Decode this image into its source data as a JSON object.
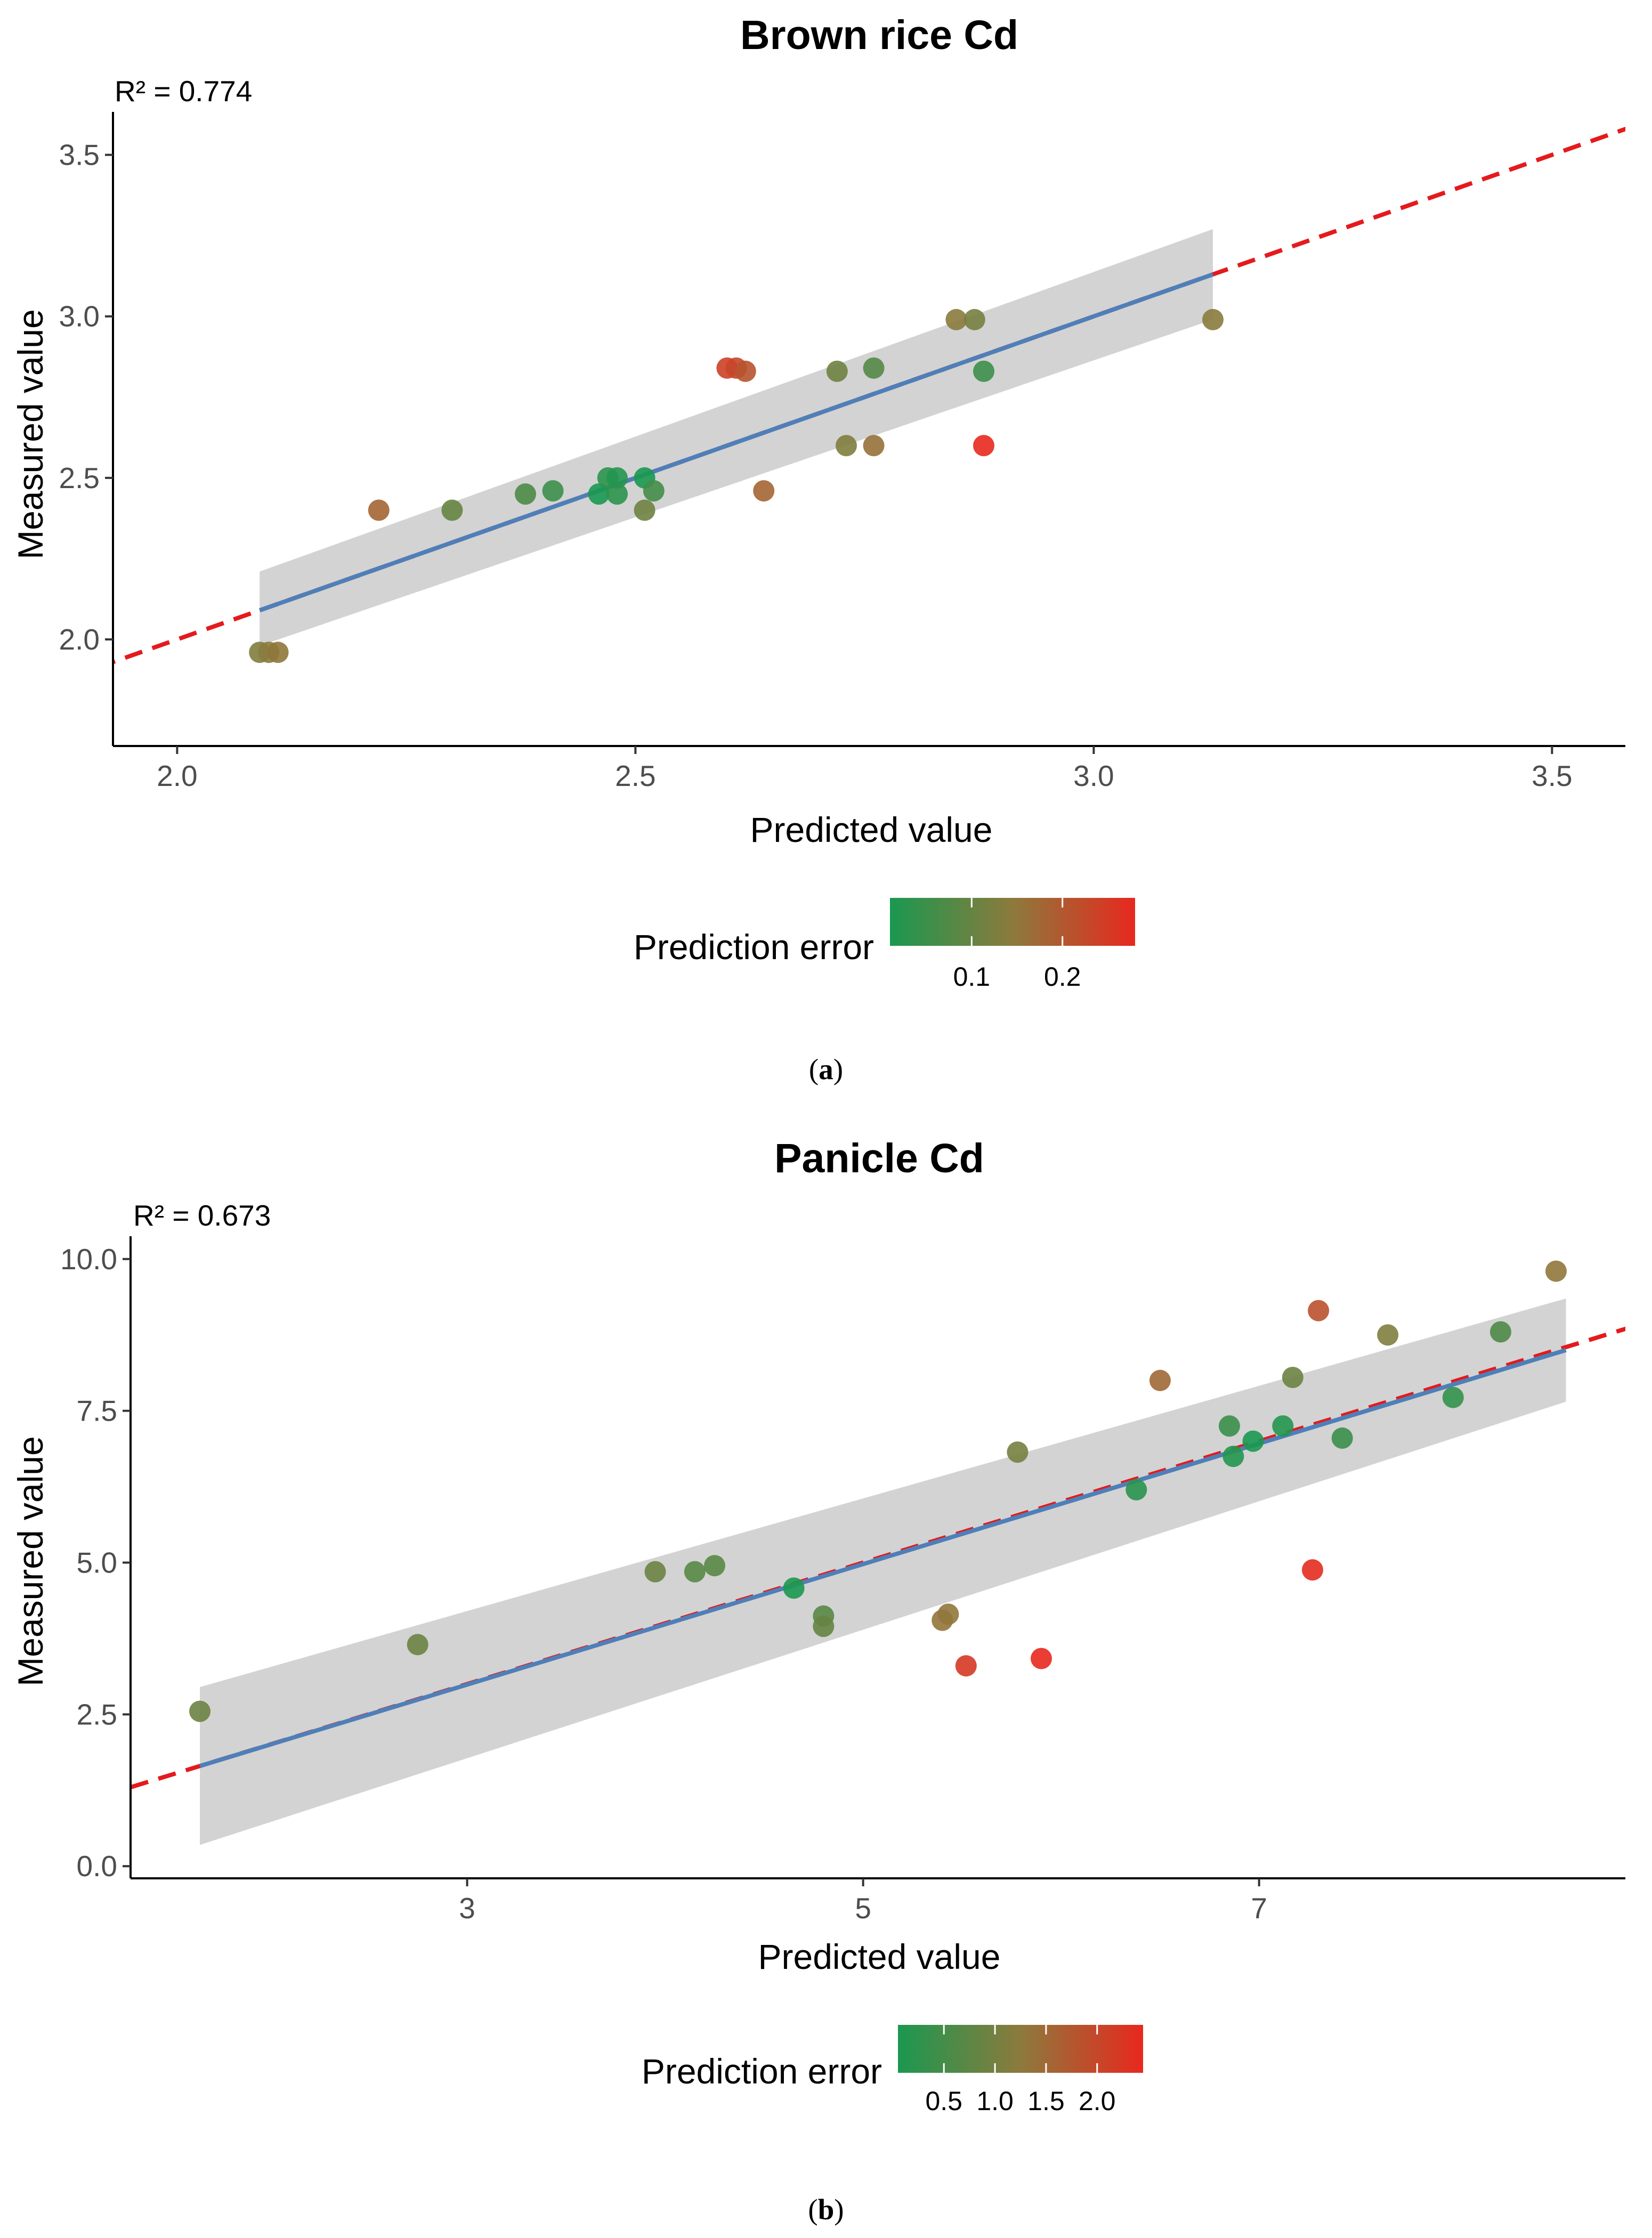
{
  "chart_data": [
    {
      "type": "scatter",
      "title": "Brown rice Cd",
      "r2_label": "R² = 0.774",
      "xlabel": "Predicted value",
      "ylabel": "Measured value",
      "xlim": [
        1.93,
        3.58
      ],
      "ylim": [
        1.67,
        3.6
      ],
      "xticks": [
        2.0,
        2.5,
        3.0,
        3.5
      ],
      "xtick_labels": [
        "2.0",
        "2.5",
        "3.0",
        "3.5"
      ],
      "yticks": [
        2.0,
        2.5,
        3.0,
        3.5
      ],
      "ytick_labels": [
        "2.0",
        "2.5",
        "3.0",
        "3.5"
      ],
      "grid": false,
      "identity_line": {
        "style": "dashed",
        "color": "#e41a1c"
      },
      "fit": {
        "x": [
          2.09,
          3.13
        ],
        "y": [
          2.09,
          3.13
        ],
        "se_lower": [
          1.98,
          2.99
        ],
        "se_upper": [
          2.21,
          3.27
        ],
        "color": "#4f7fb8"
      },
      "points": [
        {
          "x": 2.09,
          "y": 1.96,
          "err": 0.13
        },
        {
          "x": 2.1,
          "y": 1.96,
          "err": 0.14
        },
        {
          "x": 2.11,
          "y": 1.96,
          "err": 0.15
        },
        {
          "x": 2.22,
          "y": 2.4,
          "err": 0.18
        },
        {
          "x": 2.3,
          "y": 2.4,
          "err": 0.1
        },
        {
          "x": 2.38,
          "y": 2.45,
          "err": 0.07
        },
        {
          "x": 2.41,
          "y": 2.46,
          "err": 0.05
        },
        {
          "x": 2.46,
          "y": 2.45,
          "err": 0.01
        },
        {
          "x": 2.47,
          "y": 2.5,
          "err": 0.03
        },
        {
          "x": 2.48,
          "y": 2.5,
          "err": 0.02
        },
        {
          "x": 2.48,
          "y": 2.45,
          "err": 0.03
        },
        {
          "x": 2.51,
          "y": 2.4,
          "err": 0.11
        },
        {
          "x": 2.51,
          "y": 2.5,
          "err": 0.01
        },
        {
          "x": 2.52,
          "y": 2.46,
          "err": 0.06
        },
        {
          "x": 2.6,
          "y": 2.84,
          "err": 0.24
        },
        {
          "x": 2.61,
          "y": 2.84,
          "err": 0.23
        },
        {
          "x": 2.62,
          "y": 2.83,
          "err": 0.21
        },
        {
          "x": 2.64,
          "y": 2.46,
          "err": 0.18
        },
        {
          "x": 2.72,
          "y": 2.83,
          "err": 0.11
        },
        {
          "x": 2.73,
          "y": 2.6,
          "err": 0.13
        },
        {
          "x": 2.76,
          "y": 2.84,
          "err": 0.08
        },
        {
          "x": 2.76,
          "y": 2.6,
          "err": 0.16
        },
        {
          "x": 2.85,
          "y": 2.99,
          "err": 0.14
        },
        {
          "x": 2.87,
          "y": 2.99,
          "err": 0.12
        },
        {
          "x": 2.88,
          "y": 2.83,
          "err": 0.05
        },
        {
          "x": 2.88,
          "y": 2.6,
          "err": 0.28
        },
        {
          "x": 3.13,
          "y": 2.99,
          "err": 0.14
        }
      ],
      "legend": {
        "title": "Prediction error",
        "position": "bottom",
        "range": [
          0.01,
          0.28
        ],
        "ticks": [
          0.1,
          0.2
        ],
        "tick_labels": [
          "0.1",
          "0.2"
        ],
        "low_color": "#1a9850",
        "mid_color": "#8c7a3c",
        "high_color": "#e8281e"
      },
      "caption_open": "(",
      "caption_letter": "a",
      "caption_close": ")"
    },
    {
      "type": "scatter",
      "title": "Panicle Cd",
      "r2_label": "R² = 0.673",
      "xlabel": "Predicted value",
      "ylabel": "Measured value",
      "xlim": [
        1.3,
        8.85
      ],
      "ylim": [
        -0.2,
        10.2
      ],
      "xticks": [
        3,
        5,
        7
      ],
      "xtick_labels": [
        "3",
        "5",
        "7"
      ],
      "yticks": [
        0.0,
        2.5,
        5.0,
        7.5,
        10.0
      ],
      "ytick_labels": [
        "0.0",
        "2.5",
        "5.0",
        "7.5",
        "10.0"
      ],
      "grid": false,
      "identity_line": {
        "style": "dashed",
        "color": "#e41a1c"
      },
      "fit": {
        "x": [
          1.65,
          8.55
        ],
        "y": [
          1.65,
          8.5
        ],
        "se_lower": [
          0.35,
          7.65
        ],
        "se_upper": [
          2.95,
          9.35
        ],
        "color": "#4f7fb8"
      },
      "points": [
        {
          "x": 1.65,
          "y": 2.55,
          "err": 0.9
        },
        {
          "x": 2.75,
          "y": 3.65,
          "err": 0.9
        },
        {
          "x": 3.95,
          "y": 4.85,
          "err": 0.9
        },
        {
          "x": 4.15,
          "y": 4.85,
          "err": 0.7
        },
        {
          "x": 4.25,
          "y": 4.95,
          "err": 0.7
        },
        {
          "x": 4.65,
          "y": 4.58,
          "err": 0.07
        },
        {
          "x": 4.8,
          "y": 4.12,
          "err": 0.7
        },
        {
          "x": 4.8,
          "y": 3.95,
          "err": 0.85
        },
        {
          "x": 5.4,
          "y": 4.05,
          "err": 1.35
        },
        {
          "x": 5.43,
          "y": 4.15,
          "err": 1.3
        },
        {
          "x": 5.52,
          "y": 3.3,
          "err": 2.2
        },
        {
          "x": 5.78,
          "y": 6.82,
          "err": 1.0
        },
        {
          "x": 5.9,
          "y": 3.42,
          "err": 2.45
        },
        {
          "x": 6.38,
          "y": 6.2,
          "err": 0.2
        },
        {
          "x": 6.5,
          "y": 8.0,
          "err": 1.5
        },
        {
          "x": 6.85,
          "y": 7.25,
          "err": 0.4
        },
        {
          "x": 6.87,
          "y": 6.75,
          "err": 0.15
        },
        {
          "x": 6.97,
          "y": 7.0,
          "err": 0.05
        },
        {
          "x": 7.12,
          "y": 7.25,
          "err": 0.15
        },
        {
          "x": 7.17,
          "y": 8.05,
          "err": 0.9
        },
        {
          "x": 7.27,
          "y": 4.88,
          "err": 2.4
        },
        {
          "x": 7.3,
          "y": 9.15,
          "err": 1.85
        },
        {
          "x": 7.42,
          "y": 7.05,
          "err": 0.4
        },
        {
          "x": 7.65,
          "y": 8.75,
          "err": 1.1
        },
        {
          "x": 7.98,
          "y": 7.72,
          "err": 0.3
        },
        {
          "x": 8.22,
          "y": 8.8,
          "err": 0.6
        },
        {
          "x": 8.5,
          "y": 9.8,
          "err": 1.3
        }
      ],
      "legend": {
        "title": "Prediction error",
        "position": "bottom",
        "range": [
          0.05,
          2.45
        ],
        "ticks": [
          0.5,
          1.0,
          1.5,
          2.0
        ],
        "tick_labels": [
          "0.5",
          "1.0",
          "1.5",
          "2.0"
        ],
        "low_color": "#1a9850",
        "mid_color": "#8c7a3c",
        "high_color": "#e8281e"
      },
      "caption_open": "(",
      "caption_letter": "b",
      "caption_close": ")"
    }
  ]
}
